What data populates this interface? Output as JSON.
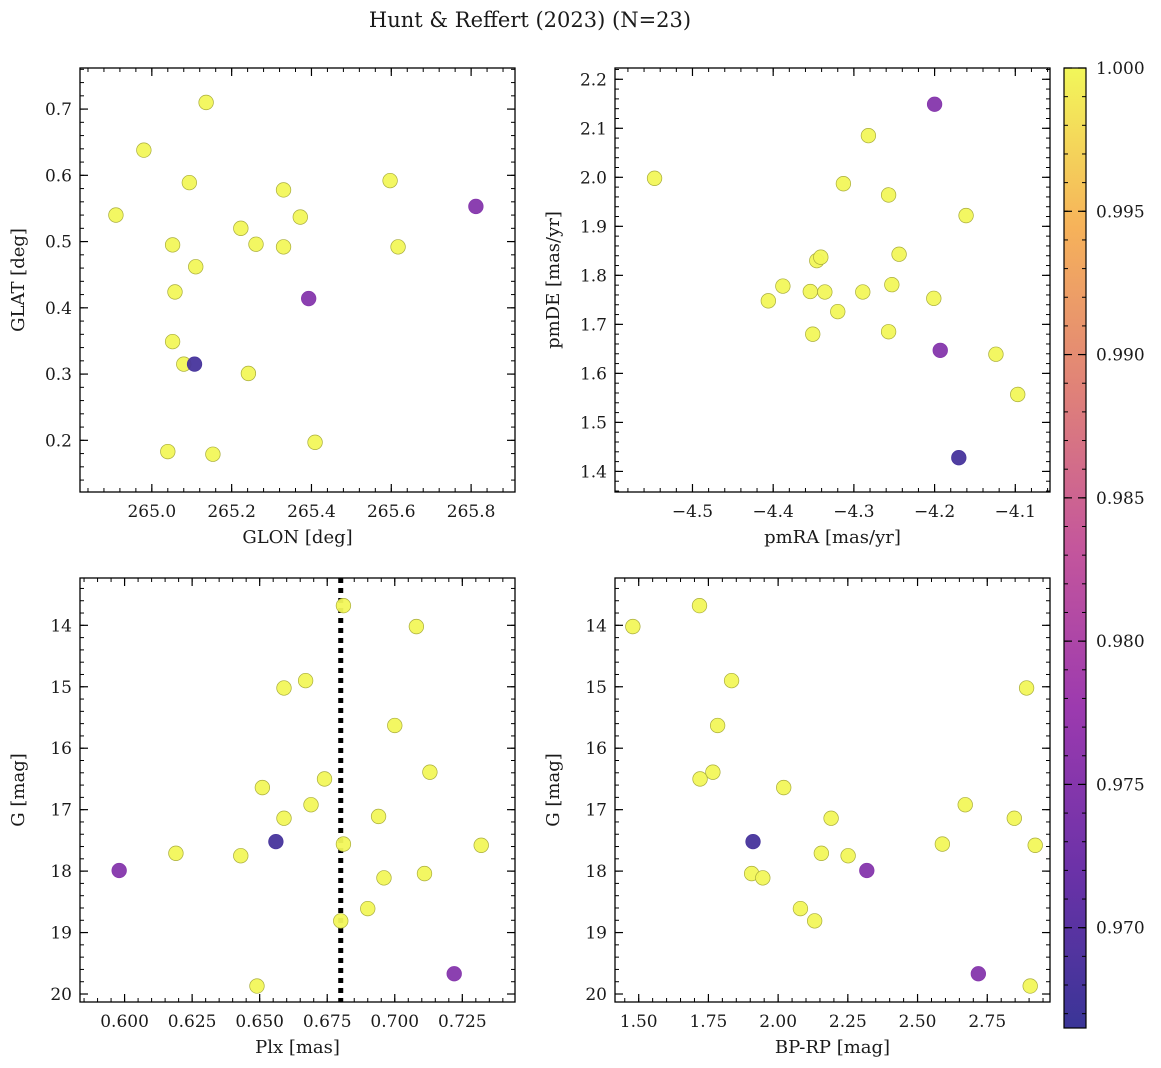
{
  "figure": {
    "suptitle": "Hunt & Reffert (2023) (N=23)"
  },
  "colorbar": {
    "min": 0.9665,
    "max": 1.0,
    "ticks": [
      0.97,
      0.975,
      0.98,
      0.985,
      0.99,
      0.995,
      1.0
    ],
    "tick_labels": [
      "0.970",
      "0.975",
      "0.980",
      "0.985",
      "0.990",
      "0.995",
      "1.000"
    ],
    "colormap": "plasma",
    "colors": [
      "#3a3597",
      "#6c32a8",
      "#9c3aaf",
      "#c4569c",
      "#e08278",
      "#f6b25a",
      "#f2f75a"
    ]
  },
  "chart_data": [
    {
      "type": "scatter",
      "xlabel": "GLON [deg]",
      "ylabel": "GLAT [deg]",
      "xlim": [
        264.82,
        265.91
      ],
      "ylim": [
        0.122,
        0.762
      ],
      "xticks": [
        265.0,
        265.2,
        265.4,
        265.6,
        265.8
      ],
      "xtick_labels": [
        "265.0",
        "265.2",
        "265.4",
        "265.6",
        "265.8"
      ],
      "yticks": [
        0.2,
        0.3,
        0.4,
        0.5,
        0.6,
        0.7
      ],
      "ytick_labels": [
        "0.2",
        "0.3",
        "0.4",
        "0.5",
        "0.6",
        "0.7"
      ],
      "x": [
        265.136,
        264.98,
        265.094,
        264.91,
        265.052,
        265.223,
        265.261,
        265.33,
        265.372,
        265.33,
        265.597,
        265.617,
        265.11,
        265.058,
        265.052,
        265.08,
        265.242,
        265.04,
        265.153,
        265.409,
        265.812,
        265.393,
        265.107
      ],
      "y": [
        0.71,
        0.638,
        0.589,
        0.54,
        0.495,
        0.52,
        0.496,
        0.578,
        0.537,
        0.492,
        0.592,
        0.492,
        0.462,
        0.424,
        0.349,
        0.315,
        0.301,
        0.183,
        0.179,
        0.197,
        0.553,
        0.414,
        0.315
      ],
      "c": [
        1,
        1,
        1,
        1,
        1,
        1,
        1,
        1,
        1,
        1,
        1,
        1,
        1,
        1,
        1,
        1,
        1,
        1,
        1,
        1,
        0.975,
        0.975,
        0.968
      ]
    },
    {
      "type": "scatter",
      "xlabel": "pmRA [mas/yr]",
      "ylabel": "pmDE [mas/yr]",
      "xlim": [
        -4.596,
        -4.057
      ],
      "ylim": [
        1.358,
        2.223
      ],
      "xticks": [
        -4.5,
        -4.4,
        -4.3,
        -4.2,
        -4.1
      ],
      "xtick_labels": [
        "−4.5",
        "−4.4",
        "−4.3",
        "−4.2",
        "−4.1"
      ],
      "yticks": [
        1.4,
        1.5,
        1.6,
        1.7,
        1.8,
        1.9,
        2.0,
        2.1,
        2.2
      ],
      "ytick_labels": [
        "1.4",
        "1.5",
        "1.6",
        "1.7",
        "1.8",
        "1.9",
        "2.0",
        "2.1",
        "2.2"
      ],
      "x": [
        -4.547,
        -4.282,
        -4.313,
        -4.257,
        -4.161,
        -4.346,
        -4.341,
        -4.244,
        -4.388,
        -4.406,
        -4.354,
        -4.336,
        -4.289,
        -4.253,
        -4.201,
        -4.32,
        -4.351,
        -4.257,
        -4.124,
        -4.097,
        -4.2,
        -4.193,
        -4.17
      ],
      "y": [
        1.998,
        2.085,
        1.987,
        1.964,
        1.922,
        1.83,
        1.837,
        1.843,
        1.778,
        1.748,
        1.767,
        1.766,
        1.766,
        1.781,
        1.753,
        1.726,
        1.68,
        1.685,
        1.639,
        1.557,
        2.149,
        1.647,
        1.428
      ],
      "c": [
        1,
        1,
        1,
        1,
        1,
        1,
        1,
        1,
        1,
        1,
        1,
        1,
        1,
        1,
        1,
        1,
        1,
        1,
        1,
        1,
        0.975,
        0.975,
        0.968
      ]
    },
    {
      "type": "scatter",
      "xlabel": "Plx [mas]",
      "ylabel": "G [mag]",
      "xlim": [
        0.5835,
        0.7445
      ],
      "ylim": [
        20.13,
        13.23
      ],
      "y_inverted": true,
      "vline": {
        "x": 0.68,
        "style": "dotted",
        "color": "#000000"
      },
      "xticks": [
        0.6,
        0.625,
        0.65,
        0.675,
        0.7,
        0.725
      ],
      "xtick_labels": [
        "0.600",
        "0.625",
        "0.650",
        "0.675",
        "0.700",
        "0.725"
      ],
      "yticks": [
        14,
        15,
        16,
        17,
        18,
        19,
        20
      ],
      "ytick_labels": [
        "14",
        "15",
        "16",
        "17",
        "18",
        "19",
        "20"
      ],
      "x": [
        0.681,
        0.708,
        0.659,
        0.667,
        0.7,
        0.713,
        0.674,
        0.651,
        0.669,
        0.659,
        0.694,
        0.681,
        0.732,
        0.619,
        0.643,
        0.696,
        0.711,
        0.68,
        0.69,
        0.649,
        0.598,
        0.722,
        0.656
      ],
      "y": [
        13.68,
        14.02,
        15.02,
        14.9,
        15.63,
        16.39,
        16.5,
        16.64,
        16.92,
        17.14,
        17.11,
        17.56,
        17.58,
        17.71,
        17.75,
        18.11,
        18.04,
        18.81,
        18.61,
        19.87,
        17.99,
        19.67,
        17.52
      ],
      "c": [
        1,
        1,
        1,
        1,
        1,
        1,
        1,
        1,
        1,
        1,
        1,
        1,
        1,
        1,
        1,
        1,
        1,
        1,
        1,
        1,
        0.975,
        0.975,
        0.968
      ]
    },
    {
      "type": "scatter",
      "xlabel": "BP-RP [mag]",
      "ylabel": "G [mag]",
      "xlim": [
        1.415,
        2.975
      ],
      "ylim": [
        20.13,
        13.23
      ],
      "y_inverted": true,
      "xticks": [
        1.5,
        1.75,
        2.0,
        2.25,
        2.5,
        2.75
      ],
      "xtick_labels": [
        "1.50",
        "1.75",
        "2.00",
        "2.25",
        "2.50",
        "2.75"
      ],
      "yticks": [
        14,
        15,
        16,
        17,
        18,
        19,
        20
      ],
      "ytick_labels": [
        "14",
        "15",
        "16",
        "17",
        "18",
        "19",
        "20"
      ],
      "x": [
        1.479,
        1.718,
        1.833,
        1.783,
        1.72,
        1.766,
        2.02,
        2.19,
        2.155,
        2.251,
        2.589,
        2.671,
        2.847,
        2.891,
        2.922,
        1.905,
        1.945,
        2.08,
        2.131,
        2.904,
        2.318,
        2.718,
        1.91
      ],
      "y": [
        14.02,
        13.68,
        14.9,
        15.63,
        16.5,
        16.39,
        16.64,
        17.14,
        17.71,
        17.75,
        17.56,
        16.92,
        17.14,
        15.02,
        17.58,
        18.04,
        18.11,
        18.61,
        18.81,
        19.87,
        17.99,
        19.67,
        17.52
      ],
      "c": [
        1,
        1,
        1,
        1,
        1,
        1,
        1,
        1,
        1,
        1,
        1,
        1,
        1,
        1,
        1,
        1,
        1,
        1,
        1,
        1,
        0.975,
        0.975,
        0.968
      ]
    }
  ]
}
